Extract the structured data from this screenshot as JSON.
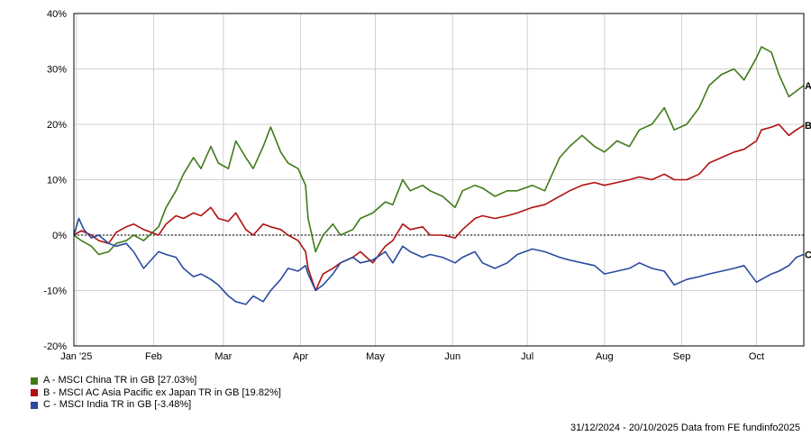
{
  "chart_data": {
    "type": "line",
    "y_axis": {
      "min": -20,
      "max": 40,
      "step": 10,
      "tick_labels": [
        "-20%",
        "-10%",
        "0%",
        "10%",
        "20%",
        "30%",
        "40%"
      ],
      "unit": "%"
    },
    "x_axis": {
      "start": "2024-12-31",
      "end": "2025-10-20",
      "tick_labels": [
        {
          "date": "2025-01-01",
          "label": "Jan '25"
        },
        {
          "date": "2025-02-01",
          "label": "Feb"
        },
        {
          "date": "2025-03-01",
          "label": "Mar"
        },
        {
          "date": "2025-04-01",
          "label": "Apr"
        },
        {
          "date": "2025-05-01",
          "label": "May"
        },
        {
          "date": "2025-06-01",
          "label": "Jun"
        },
        {
          "date": "2025-07-01",
          "label": "Jul"
        },
        {
          "date": "2025-08-01",
          "label": "Aug"
        },
        {
          "date": "2025-09-01",
          "label": "Sep"
        },
        {
          "date": "2025-10-01",
          "label": "Oct"
        }
      ]
    },
    "grid": true,
    "zero_line": "dotted",
    "series": [
      {
        "name": "A - MSCI China TR in GB [27.03%]",
        "end_label": "A",
        "color": "#3f7a18",
        "points": [
          [
            "2024-12-31",
            0
          ],
          [
            "2025-01-03",
            -1
          ],
          [
            "2025-01-07",
            -2
          ],
          [
            "2025-01-10",
            -3.5
          ],
          [
            "2025-01-14",
            -3
          ],
          [
            "2025-01-17",
            -1.5
          ],
          [
            "2025-01-21",
            -1
          ],
          [
            "2025-01-24",
            0
          ],
          [
            "2025-01-28",
            -1
          ],
          [
            "2025-02-03",
            1.5
          ],
          [
            "2025-02-06",
            5
          ],
          [
            "2025-02-10",
            8
          ],
          [
            "2025-02-13",
            11
          ],
          [
            "2025-02-17",
            14
          ],
          [
            "2025-02-20",
            12
          ],
          [
            "2025-02-24",
            16
          ],
          [
            "2025-02-27",
            13
          ],
          [
            "2025-03-03",
            12
          ],
          [
            "2025-03-06",
            17
          ],
          [
            "2025-03-10",
            14
          ],
          [
            "2025-03-13",
            12
          ],
          [
            "2025-03-17",
            16
          ],
          [
            "2025-03-20",
            19.5
          ],
          [
            "2025-03-24",
            15
          ],
          [
            "2025-03-27",
            13
          ],
          [
            "2025-03-31",
            12
          ],
          [
            "2025-04-03",
            9
          ],
          [
            "2025-04-04",
            3
          ],
          [
            "2025-04-07",
            -3
          ],
          [
            "2025-04-10",
            0
          ],
          [
            "2025-04-14",
            2
          ],
          [
            "2025-04-17",
            0
          ],
          [
            "2025-04-22",
            1
          ],
          [
            "2025-04-25",
            3
          ],
          [
            "2025-04-30",
            4
          ],
          [
            "2025-05-05",
            6
          ],
          [
            "2025-05-08",
            5.5
          ],
          [
            "2025-05-12",
            10
          ],
          [
            "2025-05-15",
            8
          ],
          [
            "2025-05-20",
            9
          ],
          [
            "2025-05-23",
            8
          ],
          [
            "2025-05-28",
            7
          ],
          [
            "2025-06-02",
            5
          ],
          [
            "2025-06-05",
            8
          ],
          [
            "2025-06-10",
            9
          ],
          [
            "2025-06-13",
            8.5
          ],
          [
            "2025-06-18",
            7
          ],
          [
            "2025-06-23",
            8
          ],
          [
            "2025-06-27",
            8
          ],
          [
            "2025-07-03",
            9
          ],
          [
            "2025-07-08",
            8
          ],
          [
            "2025-07-14",
            14
          ],
          [
            "2025-07-18",
            16
          ],
          [
            "2025-07-23",
            18
          ],
          [
            "2025-07-28",
            16
          ],
          [
            "2025-08-01",
            15
          ],
          [
            "2025-08-06",
            17
          ],
          [
            "2025-08-11",
            16
          ],
          [
            "2025-08-15",
            19
          ],
          [
            "2025-08-20",
            20
          ],
          [
            "2025-08-25",
            23
          ],
          [
            "2025-08-29",
            19
          ],
          [
            "2025-09-03",
            20
          ],
          [
            "2025-09-08",
            23
          ],
          [
            "2025-09-12",
            27
          ],
          [
            "2025-09-17",
            29
          ],
          [
            "2025-09-22",
            30
          ],
          [
            "2025-09-26",
            28
          ],
          [
            "2025-10-01",
            32
          ],
          [
            "2025-10-03",
            34
          ],
          [
            "2025-10-07",
            33
          ],
          [
            "2025-10-10",
            29
          ],
          [
            "2025-10-14",
            25
          ],
          [
            "2025-10-17",
            26
          ],
          [
            "2025-10-20",
            27.03
          ]
        ]
      },
      {
        "name": "B - MSCI AC Asia Pacific ex Japan TR in GB [19.82%]",
        "end_label": "B",
        "color": "#b01010",
        "points": [
          [
            "2024-12-31",
            0
          ],
          [
            "2025-01-03",
            0.8
          ],
          [
            "2025-01-07",
            0
          ],
          [
            "2025-01-10",
            -1
          ],
          [
            "2025-01-14",
            -1.5
          ],
          [
            "2025-01-17",
            0.5
          ],
          [
            "2025-01-21",
            1.5
          ],
          [
            "2025-01-24",
            2
          ],
          [
            "2025-01-28",
            1
          ],
          [
            "2025-02-03",
            0
          ],
          [
            "2025-02-06",
            2
          ],
          [
            "2025-02-10",
            3.5
          ],
          [
            "2025-02-13",
            3
          ],
          [
            "2025-02-17",
            4
          ],
          [
            "2025-02-20",
            3.5
          ],
          [
            "2025-02-24",
            5
          ],
          [
            "2025-02-27",
            3
          ],
          [
            "2025-03-03",
            2.5
          ],
          [
            "2025-03-06",
            4
          ],
          [
            "2025-03-10",
            1
          ],
          [
            "2025-03-13",
            0
          ],
          [
            "2025-03-17",
            2
          ],
          [
            "2025-03-20",
            1.5
          ],
          [
            "2025-03-24",
            1
          ],
          [
            "2025-03-27",
            0
          ],
          [
            "2025-03-31",
            -1
          ],
          [
            "2025-04-03",
            -3
          ],
          [
            "2025-04-04",
            -6
          ],
          [
            "2025-04-07",
            -10
          ],
          [
            "2025-04-10",
            -7
          ],
          [
            "2025-04-14",
            -6
          ],
          [
            "2025-04-17",
            -5
          ],
          [
            "2025-04-22",
            -4
          ],
          [
            "2025-04-25",
            -3
          ],
          [
            "2025-04-30",
            -5
          ],
          [
            "2025-05-05",
            -2
          ],
          [
            "2025-05-08",
            -1
          ],
          [
            "2025-05-12",
            2
          ],
          [
            "2025-05-15",
            1
          ],
          [
            "2025-05-20",
            1.5
          ],
          [
            "2025-05-23",
            0
          ],
          [
            "2025-05-28",
            0
          ],
          [
            "2025-06-02",
            -0.5
          ],
          [
            "2025-06-05",
            1
          ],
          [
            "2025-06-10",
            3
          ],
          [
            "2025-06-13",
            3.5
          ],
          [
            "2025-06-18",
            3
          ],
          [
            "2025-06-23",
            3.5
          ],
          [
            "2025-06-27",
            4
          ],
          [
            "2025-07-03",
            5
          ],
          [
            "2025-07-08",
            5.5
          ],
          [
            "2025-07-14",
            7
          ],
          [
            "2025-07-18",
            8
          ],
          [
            "2025-07-23",
            9
          ],
          [
            "2025-07-28",
            9.5
          ],
          [
            "2025-08-01",
            9
          ],
          [
            "2025-08-06",
            9.5
          ],
          [
            "2025-08-11",
            10
          ],
          [
            "2025-08-15",
            10.5
          ],
          [
            "2025-08-20",
            10
          ],
          [
            "2025-08-25",
            11
          ],
          [
            "2025-08-29",
            10
          ],
          [
            "2025-09-03",
            10
          ],
          [
            "2025-09-08",
            11
          ],
          [
            "2025-09-12",
            13
          ],
          [
            "2025-09-17",
            14
          ],
          [
            "2025-09-22",
            15
          ],
          [
            "2025-09-26",
            15.5
          ],
          [
            "2025-10-01",
            17
          ],
          [
            "2025-10-03",
            19
          ],
          [
            "2025-10-07",
            19.5
          ],
          [
            "2025-10-10",
            20
          ],
          [
            "2025-10-14",
            18
          ],
          [
            "2025-10-17",
            19
          ],
          [
            "2025-10-20",
            19.82
          ]
        ]
      },
      {
        "name": "C - MSCI India TR in GB [-3.48%]",
        "end_label": "C",
        "color": "#2a4aa0",
        "points": [
          [
            "2024-12-31",
            0
          ],
          [
            "2025-01-02",
            3
          ],
          [
            "2025-01-04",
            1
          ],
          [
            "2025-01-07",
            -0.5
          ],
          [
            "2025-01-10",
            0
          ],
          [
            "2025-01-14",
            -1.5
          ],
          [
            "2025-01-17",
            -2
          ],
          [
            "2025-01-21",
            -1.5
          ],
          [
            "2025-01-24",
            -3
          ],
          [
            "2025-01-28",
            -6
          ],
          [
            "2025-02-03",
            -3
          ],
          [
            "2025-02-06",
            -3.5
          ],
          [
            "2025-02-10",
            -4
          ],
          [
            "2025-02-13",
            -6
          ],
          [
            "2025-02-17",
            -7.5
          ],
          [
            "2025-02-20",
            -7
          ],
          [
            "2025-02-24",
            -8
          ],
          [
            "2025-02-27",
            -9
          ],
          [
            "2025-03-03",
            -11
          ],
          [
            "2025-03-06",
            -12
          ],
          [
            "2025-03-10",
            -12.5
          ],
          [
            "2025-03-13",
            -11
          ],
          [
            "2025-03-17",
            -12
          ],
          [
            "2025-03-20",
            -10
          ],
          [
            "2025-03-24",
            -8
          ],
          [
            "2025-03-27",
            -6
          ],
          [
            "2025-03-31",
            -6.5
          ],
          [
            "2025-04-03",
            -5.5
          ],
          [
            "2025-04-04",
            -7
          ],
          [
            "2025-04-07",
            -10
          ],
          [
            "2025-04-10",
            -9
          ],
          [
            "2025-04-14",
            -7
          ],
          [
            "2025-04-17",
            -5
          ],
          [
            "2025-04-22",
            -4
          ],
          [
            "2025-04-25",
            -5
          ],
          [
            "2025-04-30",
            -4.5
          ],
          [
            "2025-05-05",
            -3
          ],
          [
            "2025-05-08",
            -5
          ],
          [
            "2025-05-12",
            -2
          ],
          [
            "2025-05-15",
            -3
          ],
          [
            "2025-05-20",
            -4
          ],
          [
            "2025-05-23",
            -3.5
          ],
          [
            "2025-05-28",
            -4
          ],
          [
            "2025-06-02",
            -5
          ],
          [
            "2025-06-05",
            -4
          ],
          [
            "2025-06-10",
            -3
          ],
          [
            "2025-06-13",
            -5
          ],
          [
            "2025-06-18",
            -6
          ],
          [
            "2025-06-23",
            -5
          ],
          [
            "2025-06-27",
            -3.5
          ],
          [
            "2025-07-03",
            -2.5
          ],
          [
            "2025-07-08",
            -3
          ],
          [
            "2025-07-14",
            -4
          ],
          [
            "2025-07-18",
            -4.5
          ],
          [
            "2025-07-23",
            -5
          ],
          [
            "2025-07-28",
            -5.5
          ],
          [
            "2025-08-01",
            -7
          ],
          [
            "2025-08-06",
            -6.5
          ],
          [
            "2025-08-11",
            -6
          ],
          [
            "2025-08-15",
            -5
          ],
          [
            "2025-08-20",
            -6
          ],
          [
            "2025-08-25",
            -6.5
          ],
          [
            "2025-08-29",
            -9
          ],
          [
            "2025-09-03",
            -8
          ],
          [
            "2025-09-08",
            -7.5
          ],
          [
            "2025-09-12",
            -7
          ],
          [
            "2025-09-17",
            -6.5
          ],
          [
            "2025-09-22",
            -6
          ],
          [
            "2025-09-26",
            -5.5
          ],
          [
            "2025-10-01",
            -8.5
          ],
          [
            "2025-10-03",
            -8
          ],
          [
            "2025-10-07",
            -7
          ],
          [
            "2025-10-10",
            -6.5
          ],
          [
            "2025-10-14",
            -5.5
          ],
          [
            "2025-10-17",
            -4
          ],
          [
            "2025-10-20",
            -3.48
          ]
        ]
      }
    ],
    "footer": "31/12/2024 - 20/10/2025 Data from FE fundinfo2025"
  }
}
